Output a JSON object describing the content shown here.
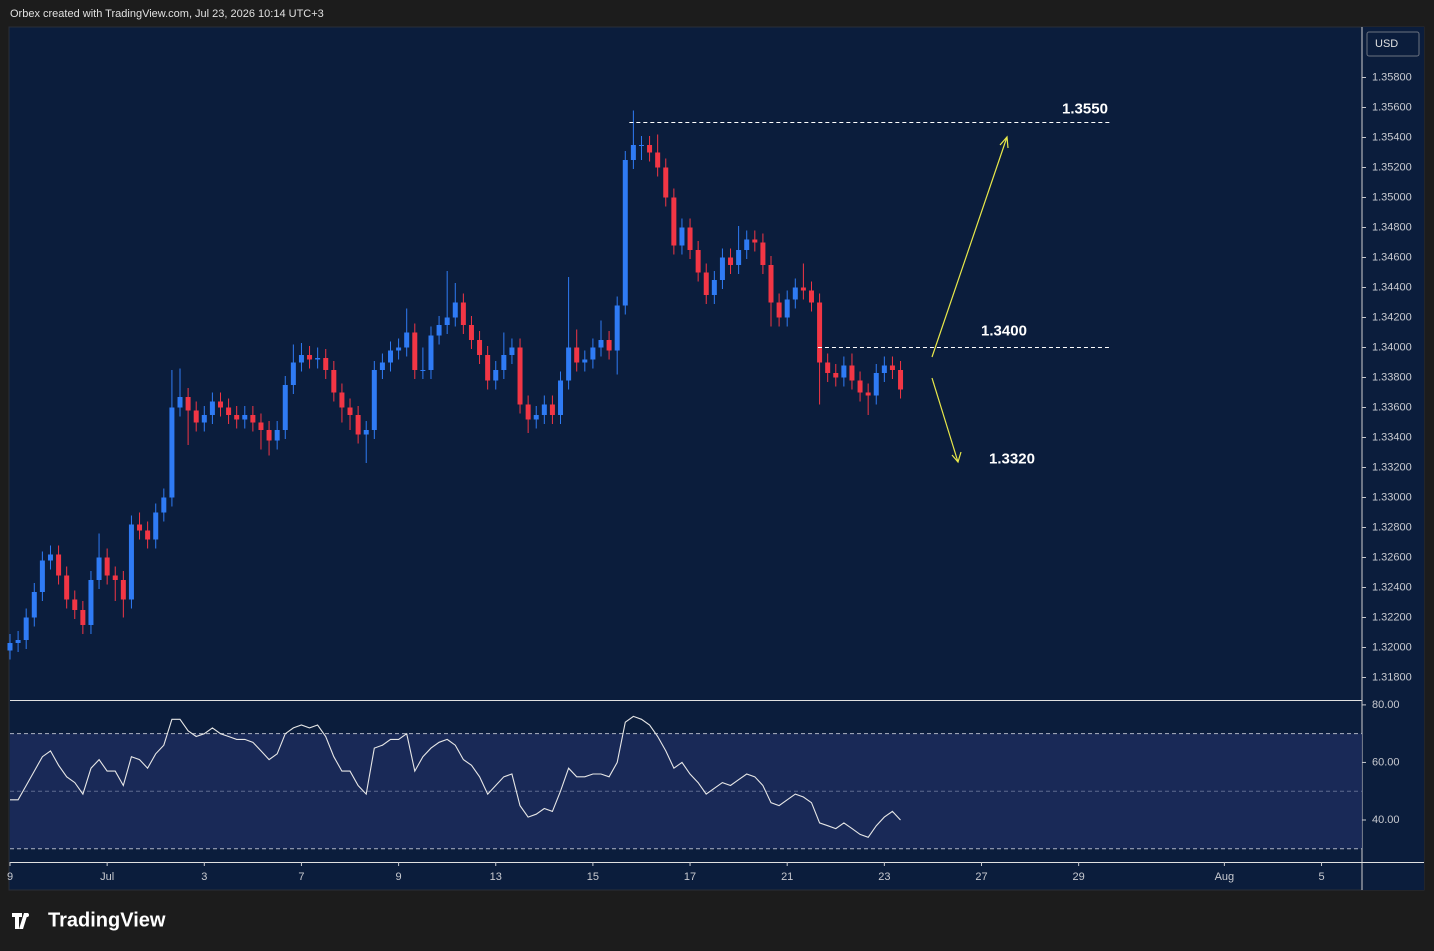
{
  "header": {
    "caption": "Orbex created with TradingView.com, Jul 23, 2026 10:14 UTC+3"
  },
  "footer": {
    "logo": "TradingView"
  },
  "chart_data": [
    {
      "type": "candlestick",
      "currency": "USD",
      "up_color": "#2f7bf5",
      "down_color": "#f23645",
      "xlim": [
        0,
        167
      ],
      "ylim": [
        1.3165,
        1.3613
      ],
      "yticks": [
        {
          "value": 1.358,
          "label": "1.35800"
        },
        {
          "value": 1.356,
          "label": "1.35600"
        },
        {
          "value": 1.354,
          "label": "1.35400"
        },
        {
          "value": 1.352,
          "label": "1.35200"
        },
        {
          "value": 1.35,
          "label": "1.35000"
        },
        {
          "value": 1.348,
          "label": "1.34800"
        },
        {
          "value": 1.346,
          "label": "1.34600"
        },
        {
          "value": 1.344,
          "label": "1.34400"
        },
        {
          "value": 1.342,
          "label": "1.34200"
        },
        {
          "value": 1.34,
          "label": "1.34000"
        },
        {
          "value": 1.338,
          "label": "1.33800"
        },
        {
          "value": 1.336,
          "label": "1.33600"
        },
        {
          "value": 1.334,
          "label": "1.33400"
        },
        {
          "value": 1.332,
          "label": "1.33200"
        },
        {
          "value": 1.33,
          "label": "1.33000"
        },
        {
          "value": 1.328,
          "label": "1.32800"
        },
        {
          "value": 1.326,
          "label": "1.32600"
        },
        {
          "value": 1.324,
          "label": "1.32400"
        },
        {
          "value": 1.322,
          "label": "1.32200"
        },
        {
          "value": 1.32,
          "label": "1.32000"
        },
        {
          "value": 1.318,
          "label": "1.31800"
        }
      ],
      "xticks": [
        {
          "value": 0,
          "label": "9"
        },
        {
          "value": 12,
          "label": "Jul"
        },
        {
          "value": 24,
          "label": "3"
        },
        {
          "value": 36,
          "label": "7"
        },
        {
          "value": 48,
          "label": "9"
        },
        {
          "value": 60,
          "label": "13"
        },
        {
          "value": 72,
          "label": "15"
        },
        {
          "value": 84,
          "label": "17"
        },
        {
          "value": 96,
          "label": "21"
        },
        {
          "value": 108,
          "label": "23"
        },
        {
          "value": 120,
          "label": "27"
        },
        {
          "value": 132,
          "label": "29"
        },
        {
          "value": 150,
          "label": "Aug"
        },
        {
          "value": 162,
          "label": "5"
        }
      ],
      "annotations": [
        {
          "label": "1.3550",
          "value": 1.355,
          "dashed_line": true
        },
        {
          "label": "1.3400",
          "value": 1.34,
          "dashed_line": true
        },
        {
          "label": "1.3320",
          "value": 1.332,
          "dashed_line": false
        }
      ],
      "open": [
        1.3198,
        1.3203,
        1.3205,
        1.322,
        1.3237,
        1.3258,
        1.3262,
        1.3248,
        1.3232,
        1.3225,
        1.3215,
        1.3245,
        1.326,
        1.3248,
        1.3245,
        1.3232,
        1.3282,
        1.3278,
        1.3272,
        1.329,
        1.33,
        1.336,
        1.3367,
        1.3358,
        1.335,
        1.3355,
        1.3364,
        1.336,
        1.3355,
        1.3352,
        1.3355,
        1.335,
        1.3345,
        1.3338,
        1.3345,
        1.3375,
        1.339,
        1.3395,
        1.3392,
        1.3393,
        1.3385,
        1.337,
        1.336,
        1.3355,
        1.3342,
        1.3345,
        1.3385,
        1.339,
        1.3398,
        1.34,
        1.341,
        1.3385,
        1.3385,
        1.3408,
        1.3415,
        1.342,
        1.343,
        1.3415,
        1.3405,
        1.3395,
        1.3378,
        1.3385,
        1.3395,
        1.34,
        1.3362,
        1.3352,
        1.3355,
        1.3362,
        1.3355,
        1.3378,
        1.34,
        1.339,
        1.3392,
        1.34,
        1.3405,
        1.3398,
        1.3428,
        1.3525,
        1.3535,
        1.3535,
        1.353,
        1.352,
        1.35,
        1.3468,
        1.348,
        1.3465,
        1.345,
        1.3435,
        1.3445,
        1.346,
        1.3455,
        1.3465,
        1.3472,
        1.347,
        1.3455,
        1.343,
        1.342,
        1.3432,
        1.344,
        1.3438,
        1.343,
        1.339,
        1.3383,
        1.338,
        1.3388,
        1.3378,
        1.337,
        1.3368,
        1.3383,
        1.3388,
        1.3385
      ],
      "high": [
        1.3209,
        1.3211,
        1.3226,
        1.3243,
        1.3264,
        1.3268,
        1.3268,
        1.3254,
        1.3238,
        1.3231,
        1.3251,
        1.3276,
        1.3266,
        1.3254,
        1.3251,
        1.3288,
        1.329,
        1.3284,
        1.3296,
        1.3306,
        1.3385,
        1.3386,
        1.3373,
        1.3364,
        1.3361,
        1.337,
        1.337,
        1.3366,
        1.3361,
        1.3361,
        1.3361,
        1.3356,
        1.3351,
        1.3351,
        1.3381,
        1.3402,
        1.3403,
        1.3401,
        1.34,
        1.3399,
        1.3391,
        1.3376,
        1.3366,
        1.3361,
        1.3351,
        1.3391,
        1.3396,
        1.3404,
        1.3406,
        1.3426,
        1.3416,
        1.34,
        1.3414,
        1.3421,
        1.3451,
        1.3443,
        1.3436,
        1.3421,
        1.3411,
        1.3401,
        1.3391,
        1.341,
        1.3406,
        1.3406,
        1.3368,
        1.3361,
        1.3368,
        1.3368,
        1.3384,
        1.3447,
        1.3412,
        1.3398,
        1.3406,
        1.3418,
        1.3411,
        1.3434,
        1.3531,
        1.3558,
        1.3541,
        1.3541,
        1.3542,
        1.3526,
        1.3506,
        1.3486,
        1.3486,
        1.3471,
        1.3456,
        1.3451,
        1.3466,
        1.3466,
        1.3481,
        1.3478,
        1.3478,
        1.3476,
        1.3461,
        1.3436,
        1.3438,
        1.3446,
        1.3456,
        1.3444,
        1.3436,
        1.3396,
        1.3389,
        1.3394,
        1.3396,
        1.3384,
        1.3376,
        1.3389,
        1.3394,
        1.3394,
        1.3391
      ],
      "low": [
        1.3192,
        1.3197,
        1.3199,
        1.3214,
        1.3231,
        1.3252,
        1.3242,
        1.3226,
        1.3219,
        1.3209,
        1.3209,
        1.3239,
        1.3242,
        1.3231,
        1.322,
        1.3226,
        1.3272,
        1.3266,
        1.3266,
        1.3284,
        1.3294,
        1.3354,
        1.3335,
        1.3344,
        1.3344,
        1.3349,
        1.3354,
        1.3349,
        1.3346,
        1.3346,
        1.3344,
        1.3332,
        1.3328,
        1.3332,
        1.3339,
        1.3369,
        1.3384,
        1.3386,
        1.3386,
        1.3379,
        1.3364,
        1.335,
        1.3345,
        1.3336,
        1.3323,
        1.3339,
        1.3379,
        1.3384,
        1.3392,
        1.3394,
        1.3379,
        1.3379,
        1.3379,
        1.3402,
        1.3409,
        1.3414,
        1.3409,
        1.3399,
        1.3389,
        1.3372,
        1.3372,
        1.3379,
        1.3389,
        1.3356,
        1.3343,
        1.3346,
        1.3349,
        1.3349,
        1.3349,
        1.3372,
        1.3384,
        1.3384,
        1.3386,
        1.3394,
        1.3392,
        1.3382,
        1.3422,
        1.3519,
        1.3525,
        1.3524,
        1.3514,
        1.3494,
        1.3462,
        1.3462,
        1.3459,
        1.3444,
        1.3429,
        1.3429,
        1.3439,
        1.3449,
        1.3449,
        1.3459,
        1.3464,
        1.3449,
        1.3414,
        1.3414,
        1.3414,
        1.3426,
        1.3432,
        1.3424,
        1.3362,
        1.3377,
        1.3374,
        1.3374,
        1.3372,
        1.3364,
        1.3355,
        1.3362,
        1.3377,
        1.3379,
        1.3366
      ],
      "close": [
        1.3203,
        1.3205,
        1.322,
        1.3237,
        1.3258,
        1.3262,
        1.3248,
        1.3232,
        1.3225,
        1.3215,
        1.3245,
        1.326,
        1.3248,
        1.3245,
        1.3232,
        1.3282,
        1.3278,
        1.3272,
        1.329,
        1.33,
        1.336,
        1.3367,
        1.3358,
        1.335,
        1.3355,
        1.3364,
        1.336,
        1.3355,
        1.3352,
        1.3355,
        1.335,
        1.3345,
        1.3338,
        1.3345,
        1.3375,
        1.339,
        1.3395,
        1.3392,
        1.3393,
        1.3385,
        1.337,
        1.336,
        1.3355,
        1.3342,
        1.3345,
        1.3385,
        1.339,
        1.3398,
        1.34,
        1.341,
        1.3385,
        1.3385,
        1.3408,
        1.3415,
        1.342,
        1.343,
        1.3415,
        1.3405,
        1.3395,
        1.3378,
        1.3385,
        1.3395,
        1.34,
        1.3362,
        1.3352,
        1.3355,
        1.3362,
        1.3355,
        1.3378,
        1.34,
        1.339,
        1.3392,
        1.34,
        1.3405,
        1.3398,
        1.3428,
        1.3525,
        1.3535,
        1.3535,
        1.353,
        1.352,
        1.35,
        1.3468,
        1.348,
        1.3465,
        1.345,
        1.3435,
        1.3445,
        1.346,
        1.3455,
        1.3465,
        1.3472,
        1.347,
        1.3455,
        1.343,
        1.342,
        1.3432,
        1.344,
        1.3438,
        1.343,
        1.339,
        1.3383,
        1.338,
        1.3388,
        1.3378,
        1.337,
        1.3368,
        1.3383,
        1.3388,
        1.3385,
        1.3372
      ]
    },
    {
      "type": "line",
      "color": "#e6e6e6",
      "xlim": [
        0,
        167
      ],
      "ylim": [
        25.4,
        81.7
      ],
      "yticks": [
        {
          "value": 80,
          "label": "80.00"
        },
        {
          "value": 60,
          "label": "60.00"
        },
        {
          "value": 40,
          "label": "40.00"
        }
      ],
      "levels": [
        70,
        50,
        30
      ],
      "values": [
        47,
        47,
        52,
        57,
        62,
        64,
        59,
        55,
        53,
        49,
        58,
        61,
        57,
        57,
        52,
        62,
        61,
        58,
        63,
        66,
        75,
        75,
        71,
        69,
        70,
        72,
        70,
        69,
        68,
        68,
        67,
        64,
        61,
        63,
        70,
        72,
        73,
        72,
        73,
        69,
        62,
        57,
        57,
        52,
        49,
        65,
        66,
        68,
        68,
        70,
        57,
        62,
        65,
        67,
        68,
        66,
        61,
        59,
        55,
        49,
        52,
        55,
        56,
        45,
        41,
        42,
        44,
        43,
        50,
        58,
        55,
        55,
        56,
        56,
        55,
        60,
        74,
        76,
        75,
        73,
        69,
        64,
        58,
        60,
        56,
        53,
        49,
        51,
        53,
        52,
        54,
        56,
        55,
        52,
        46,
        45,
        47,
        49,
        48,
        46,
        39,
        38,
        37,
        39,
        37,
        35,
        34,
        38,
        41,
        43,
        40
      ]
    }
  ]
}
